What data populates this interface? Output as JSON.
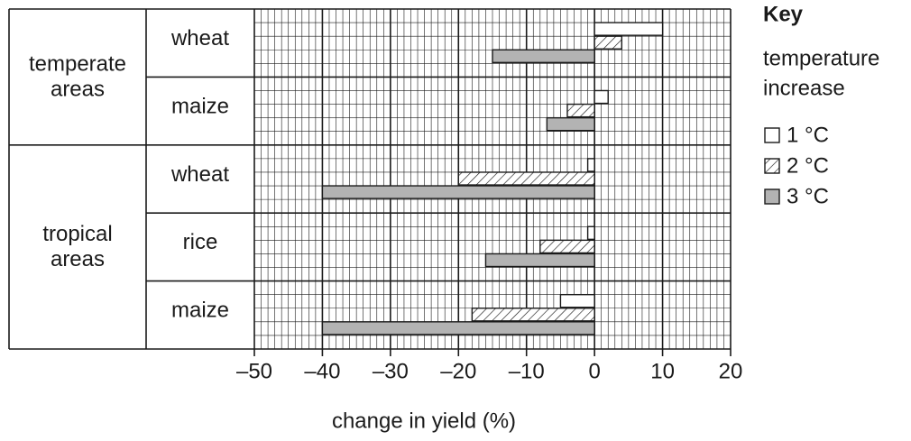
{
  "chart_data": {
    "type": "bar",
    "orientation": "horizontal",
    "xlabel": "change in yield (%)",
    "xlim": [
      -50,
      20
    ],
    "xticks": [
      "–50",
      "–40",
      "–30",
      "–20",
      "–10",
      "0",
      "10",
      "20"
    ],
    "grid": true,
    "groups": [
      {
        "label": "temperate areas",
        "crops": [
          "wheat",
          "maize"
        ]
      },
      {
        "label": "tropical areas",
        "crops": [
          "wheat",
          "rice",
          "maize"
        ]
      }
    ],
    "categories": [
      "temperate areas wheat",
      "temperate areas maize",
      "tropical areas wheat",
      "tropical areas rice",
      "tropical areas maize"
    ],
    "series": [
      {
        "name": "1 °C",
        "fill": "white",
        "values": [
          10,
          2,
          -1,
          -1,
          -5
        ]
      },
      {
        "name": "2 °C",
        "fill": "hatched",
        "values": [
          4,
          -4,
          -20,
          -8,
          -18
        ]
      },
      {
        "name": "3 °C",
        "fill": "grey",
        "values": [
          -15,
          -7,
          -40,
          -16,
          -40
        ]
      }
    ],
    "legend": {
      "title": "Key",
      "subtitle_lines": [
        "temperature",
        "increase"
      ],
      "placement": "right"
    },
    "colors": {
      "grey": "#b3b3b3",
      "line": "#1a1a1a"
    }
  }
}
